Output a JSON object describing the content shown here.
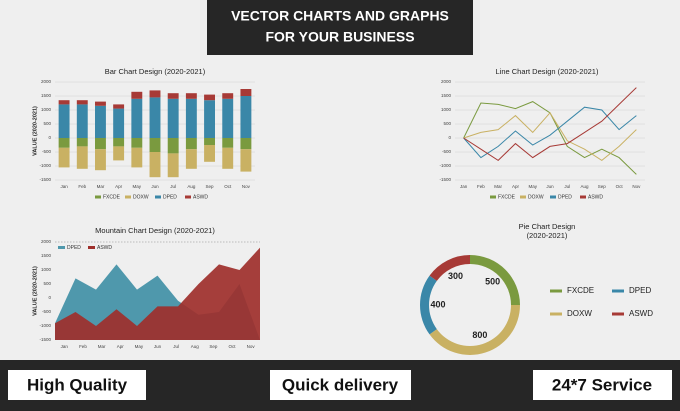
{
  "header": {
    "lines": [
      "VECTOR CHARTS AND GRAPHS",
      "FOR YOUR BUSINESS"
    ]
  },
  "footer": {
    "items": [
      "High Quality",
      "Quick delivery",
      "24*7 Service"
    ]
  },
  "chart_data": [
    {
      "type": "bar",
      "title": "Bar Chart Design (2020-2021)",
      "y_label": "VALUE (2020-2021)",
      "categories": [
        "Jan",
        "Feb",
        "Mar",
        "Apr",
        "May",
        "Jun",
        "Jul",
        "Aug",
        "Sep",
        "Oct",
        "Nov"
      ],
      "series": [
        {
          "name": "FXCDE",
          "color": "#7a9a3f",
          "values": [
            -350,
            -300,
            -400,
            -300,
            -350,
            -500,
            -550,
            -400,
            -250,
            -350,
            -400
          ]
        },
        {
          "name": "DOXW",
          "color": "#c9b163",
          "values": [
            -700,
            -800,
            -750,
            -500,
            -700,
            -900,
            -850,
            -700,
            -600,
            -750,
            -800
          ]
        },
        {
          "name": "DPED",
          "color": "#3a87a8",
          "values": [
            1200,
            1200,
            1150,
            1050,
            1400,
            1450,
            1400,
            1400,
            1350,
            1400,
            1500
          ]
        },
        {
          "name": "ASWD",
          "color": "#a73a36",
          "values": [
            150,
            150,
            150,
            150,
            250,
            250,
            200,
            200,
            200,
            200,
            250
          ]
        }
      ],
      "ylim": [
        -1500,
        2000
      ],
      "yticks": [
        2000,
        1500,
        1000,
        500,
        0,
        -500,
        -1000,
        -1500
      ],
      "grid": true,
      "legend": "bottom"
    },
    {
      "type": "line",
      "title": "Line Chart Design (2020-2021)",
      "categories": [
        "Jan",
        "Feb",
        "Mar",
        "Apr",
        "May",
        "Jun",
        "Jul",
        "Aug",
        "Sep",
        "Oct",
        "Nov"
      ],
      "series": [
        {
          "name": "FXCDE",
          "color": "#7a9a3f",
          "values": [
            0,
            1250,
            1200,
            1050,
            1300,
            900,
            -300,
            -700,
            -400,
            -700,
            -1300
          ]
        },
        {
          "name": "DOXW",
          "color": "#c9b163",
          "values": [
            0,
            200,
            300,
            800,
            200,
            900,
            -100,
            -400,
            -800,
            -300,
            300
          ]
        },
        {
          "name": "DPED",
          "color": "#3a87a8",
          "values": [
            0,
            -700,
            -300,
            250,
            -250,
            100,
            600,
            1100,
            1000,
            300,
            800
          ]
        },
        {
          "name": "ASWD",
          "color": "#a73a36",
          "values": [
            0,
            -400,
            -800,
            -200,
            -700,
            -300,
            -200,
            200,
            600,
            1200,
            1800
          ]
        }
      ],
      "ylim": [
        -1500,
        2000
      ],
      "yticks": [
        2000,
        1500,
        1000,
        500,
        0,
        -500,
        -1000,
        -1500
      ],
      "grid": true,
      "legend": "bottom"
    },
    {
      "type": "area",
      "title": "Mountain Chart Design (2020-2021)",
      "y_label": "VALUE (2020-2021)",
      "categories": [
        "Jan",
        "Feb",
        "Mar",
        "Apr",
        "May",
        "Jun",
        "Jul",
        "Aug",
        "Sep",
        "Oct",
        "Nov"
      ],
      "series": [
        {
          "name": "DPED",
          "color": "#4f98ac",
          "values": [
            -900,
            700,
            300,
            1200,
            300,
            800,
            -100,
            -600,
            -500,
            500,
            -1500
          ]
        },
        {
          "name": "ASWD",
          "color": "#9e2f2b",
          "values": [
            -900,
            -500,
            -1000,
            -400,
            -1000,
            -300,
            -300,
            500,
            1200,
            1000,
            1800
          ]
        }
      ],
      "ylim": [
        -1500,
        2000
      ],
      "yticks": [
        2000,
        1500,
        1000,
        500,
        0,
        -500,
        -1000,
        -1500
      ],
      "grid": false,
      "legend": "top-left"
    },
    {
      "type": "pie",
      "title": "Pie Chart Design",
      "subtitle": "(2020-2021)",
      "categories": [
        "FXCDE",
        "DOXW",
        "DPED",
        "ASWD"
      ],
      "values": [
        500,
        800,
        400,
        300
      ],
      "colors": [
        "#7a9a3f",
        "#c9b163",
        "#3a87a8",
        "#a73a36"
      ],
      "legend": "right"
    }
  ]
}
